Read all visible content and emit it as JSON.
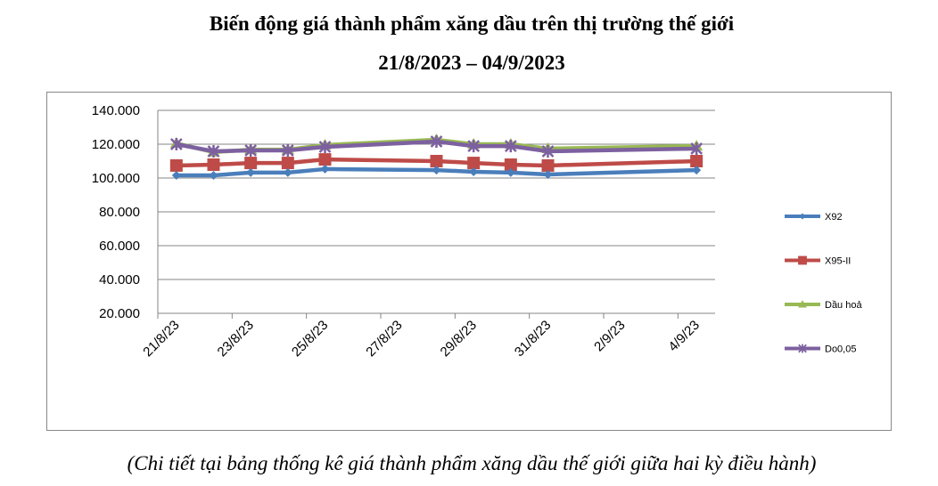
{
  "chart_data": {
    "type": "line",
    "title": "Biến động giá thành phẩm xăng dầu trên thị trường thế giới",
    "subtitle": "21/8/2023 – 04/9/2023",
    "x": [
      "21/8/23",
      "22/8/23",
      "23/8/23",
      "24/8/23",
      "25/8/23",
      "28/8/23",
      "29/8/23",
      "30/8/23",
      "31/8/23",
      "4/9/23"
    ],
    "xlim": [
      "21/8/23",
      "4/9/23"
    ],
    "xticks": [
      "21/8/23",
      "23/8/23",
      "25/8/23",
      "27/8/23",
      "29/8/23",
      "31/8/23",
      "2/9/23",
      "4/9/23"
    ],
    "series": [
      {
        "name": "X92",
        "color": "#4a7ebb",
        "marker": "diamond",
        "values": [
          101600,
          101600,
          103200,
          103200,
          105300,
          104700,
          103700,
          103200,
          102100,
          104700
        ]
      },
      {
        "name": "X95-II",
        "color": "#be4b48",
        "marker": "square",
        "values": [
          107400,
          107900,
          108900,
          108900,
          111000,
          110000,
          108900,
          107900,
          107400,
          110000
        ]
      },
      {
        "name": "Dầu hoả",
        "color": "#98b954",
        "marker": "triangle",
        "values": [
          120500,
          115300,
          116800,
          116800,
          119500,
          122600,
          120000,
          120000,
          117400,
          118900
        ]
      },
      {
        "name": "Do0,05",
        "color": "#7d60a0",
        "marker": "cross",
        "values": [
          120000,
          115800,
          116300,
          116300,
          118400,
          121600,
          118900,
          118900,
          115800,
          117400
        ]
      }
    ],
    "ylim": [
      20000,
      140000
    ],
    "yticks": [
      {
        "value": 20000,
        "label": "20.000"
      },
      {
        "value": 40000,
        "label": "40.000"
      },
      {
        "value": 60000,
        "label": "60.000"
      },
      {
        "value": 80000,
        "label": "80.000"
      },
      {
        "value": 100000,
        "label": "100.000"
      },
      {
        "value": 120000,
        "label": "120.000"
      },
      {
        "value": 140000,
        "label": "140.000"
      }
    ],
    "grid": true,
    "legend": "right",
    "footnote": "(Chi tiết tại bảng thống kê giá thành phẩm xăng dầu thế giới giữa hai kỳ điều hành)"
  }
}
